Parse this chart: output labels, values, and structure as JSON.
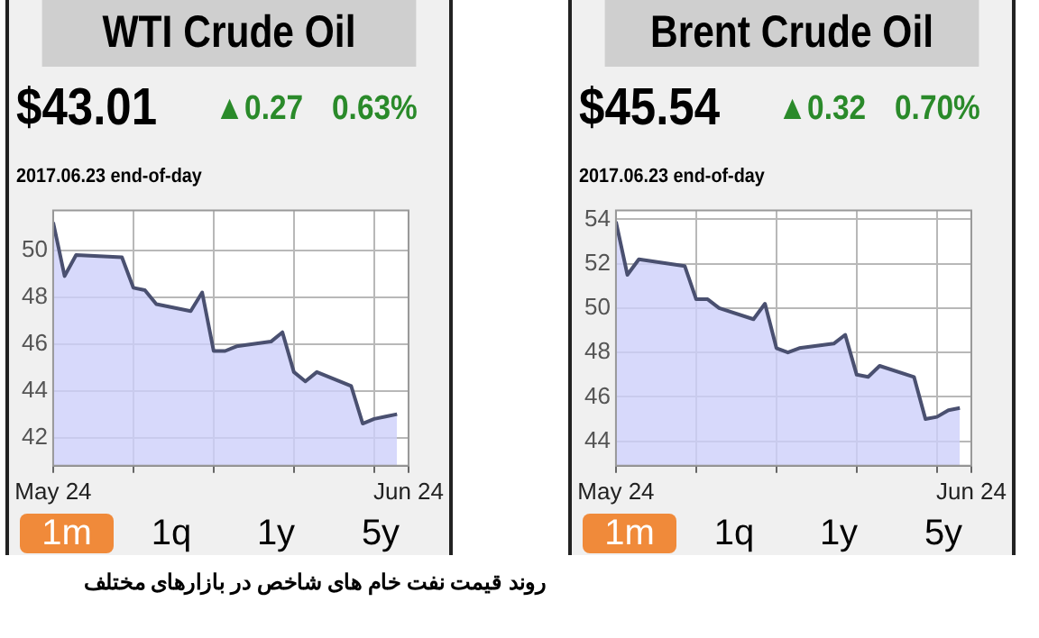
{
  "chart_data": [
    {
      "type": "area",
      "title": "WTI Crude Oil",
      "x": [
        "2017-05-24",
        "2017-05-25",
        "2017-05-26",
        "2017-05-30",
        "2017-05-31",
        "2017-06-01",
        "2017-06-02",
        "2017-06-05",
        "2017-06-06",
        "2017-06-07",
        "2017-06-08",
        "2017-06-09",
        "2017-06-12",
        "2017-06-13",
        "2017-06-14",
        "2017-06-15",
        "2017-06-16",
        "2017-06-19",
        "2017-06-20",
        "2017-06-21",
        "2017-06-22",
        "2017-06-23"
      ],
      "series": [
        {
          "color": "#4a5070",
          "values": [
            51.2,
            48.9,
            49.8,
            49.7,
            48.4,
            48.3,
            47.7,
            47.4,
            48.2,
            45.7,
            45.7,
            45.9,
            46.1,
            46.5,
            44.8,
            44.4,
            44.8,
            44.2,
            42.6,
            42.8,
            42.9,
            43.0
          ]
        }
      ],
      "xlim": [
        "2017-05-24",
        "2017-06-24"
      ],
      "xticks": [
        {
          "value": "2017-05-24",
          "label": "May 24"
        },
        {
          "value": "2017-05-31",
          "label": null
        },
        {
          "value": "2017-06-07",
          "label": null
        },
        {
          "value": "2017-06-14",
          "label": null
        },
        {
          "value": "2017-06-21",
          "label": null
        },
        {
          "value": "2017-06-24",
          "label": "Jun 24"
        }
      ],
      "ylim": [
        40.8,
        51.7
      ],
      "yticks": [
        42,
        44,
        46,
        48,
        50
      ],
      "grid": true,
      "legend": false,
      "annotations": [
        "$43.01",
        "▲0.27",
        "0.63%",
        "2017.06.23 end-of-day",
        "1m",
        "1q",
        "1y",
        "5y",
        "روند قیمت نفت خام های شاخص در بازارهای مختلف"
      ]
    },
    {
      "type": "area",
      "title": "Brent Crude Oil",
      "x": [
        "2017-05-24",
        "2017-05-25",
        "2017-05-26",
        "2017-05-30",
        "2017-05-31",
        "2017-06-01",
        "2017-06-02",
        "2017-06-05",
        "2017-06-06",
        "2017-06-07",
        "2017-06-08",
        "2017-06-09",
        "2017-06-12",
        "2017-06-13",
        "2017-06-14",
        "2017-06-15",
        "2017-06-16",
        "2017-06-19",
        "2017-06-20",
        "2017-06-21",
        "2017-06-22",
        "2017-06-23"
      ],
      "series": [
        {
          "color": "#4a5070",
          "values": [
            53.9,
            51.5,
            52.2,
            51.9,
            50.4,
            50.4,
            50.0,
            49.5,
            50.2,
            48.2,
            48.0,
            48.2,
            48.4,
            48.8,
            47.0,
            46.9,
            47.4,
            46.9,
            45.0,
            45.1,
            45.4,
            45.5
          ]
        }
      ],
      "xlim": [
        "2017-05-24",
        "2017-06-24"
      ],
      "xticks": [
        {
          "value": "2017-05-24",
          "label": "May 24"
        },
        {
          "value": "2017-05-31",
          "label": null
        },
        {
          "value": "2017-06-07",
          "label": null
        },
        {
          "value": "2017-06-14",
          "label": null
        },
        {
          "value": "2017-06-21",
          "label": null
        },
        {
          "value": "2017-06-24",
          "label": "Jun 24"
        }
      ],
      "ylim": [
        42.9,
        54.4
      ],
      "yticks": [
        44,
        46,
        48,
        50,
        52,
        54
      ],
      "grid": true,
      "legend": false,
      "annotations": [
        "$45.54",
        "▲0.32",
        "0.70%",
        "2017.06.23 end-of-day",
        "1m",
        "1q",
        "1y",
        "5y"
      ]
    }
  ]
}
